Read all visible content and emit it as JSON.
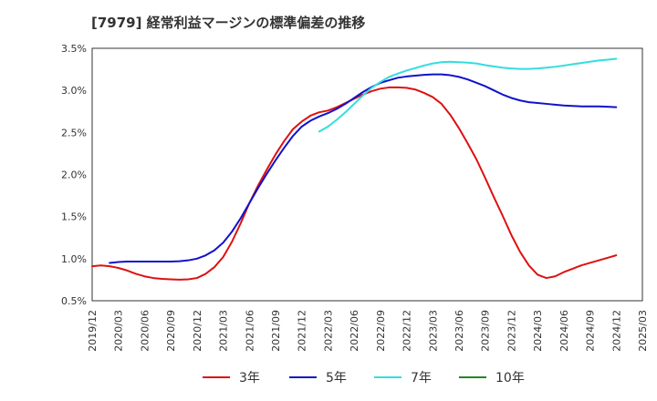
{
  "chart_data": {
    "type": "line",
    "title": "[7979]  経常利益マージンの標準偏差の推移",
    "xlabel": "",
    "ylabel": "",
    "ylim": [
      0.5,
      3.5
    ],
    "y_ticks": [
      "0.5%",
      "1.0%",
      "1.5%",
      "2.0%",
      "2.5%",
      "3.0%",
      "3.5%"
    ],
    "y_tick_values": [
      0.5,
      1.0,
      1.5,
      2.0,
      2.5,
      3.0,
      3.5
    ],
    "x_ticks": [
      "2019/12",
      "2020/03",
      "2020/06",
      "2020/09",
      "2020/12",
      "2021/03",
      "2021/06",
      "2021/09",
      "2021/12",
      "2022/03",
      "2022/06",
      "2022/09",
      "2022/12",
      "2023/03",
      "2023/06",
      "2023/09",
      "2023/12",
      "2024/03",
      "2024/06",
      "2024/09",
      "2024/12",
      "2025/03"
    ],
    "grid": true,
    "legend_position": "bottom",
    "series": [
      {
        "name": "3年",
        "color": "#dd1111",
        "points": [
          [
            "2019/12",
            0.91
          ],
          [
            "2020/01",
            0.92
          ],
          [
            "2020/02",
            0.91
          ],
          [
            "2020/03",
            0.89
          ],
          [
            "2020/04",
            0.86
          ],
          [
            "2020/05",
            0.82
          ],
          [
            "2020/06",
            0.79
          ],
          [
            "2020/07",
            0.77
          ],
          [
            "2020/08",
            0.76
          ],
          [
            "2020/09",
            0.755
          ],
          [
            "2020/10",
            0.75
          ],
          [
            "2020/11",
            0.755
          ],
          [
            "2020/12",
            0.77
          ],
          [
            "2021/01",
            0.82
          ],
          [
            "2021/02",
            0.9
          ],
          [
            "2021/03",
            1.02
          ],
          [
            "2021/04",
            1.2
          ],
          [
            "2021/05",
            1.42
          ],
          [
            "2021/06",
            1.66
          ],
          [
            "2021/07",
            1.87
          ],
          [
            "2021/08",
            2.06
          ],
          [
            "2021/09",
            2.24
          ],
          [
            "2021/10",
            2.4
          ],
          [
            "2021/11",
            2.54
          ],
          [
            "2021/12",
            2.63
          ],
          [
            "2022/01",
            2.7
          ],
          [
            "2022/02",
            2.74
          ],
          [
            "2022/03",
            2.76
          ],
          [
            "2022/04",
            2.8
          ],
          [
            "2022/05",
            2.85
          ],
          [
            "2022/06",
            2.9
          ],
          [
            "2022/07",
            2.95
          ],
          [
            "2022/08",
            2.99
          ],
          [
            "2022/09",
            3.02
          ],
          [
            "2022/10",
            3.035
          ],
          [
            "2022/11",
            3.035
          ],
          [
            "2022/12",
            3.03
          ],
          [
            "2023/01",
            3.01
          ],
          [
            "2023/02",
            2.97
          ],
          [
            "2023/03",
            2.92
          ],
          [
            "2023/04",
            2.84
          ],
          [
            "2023/05",
            2.71
          ],
          [
            "2023/06",
            2.55
          ],
          [
            "2023/07",
            2.37
          ],
          [
            "2023/08",
            2.18
          ],
          [
            "2023/09",
            1.96
          ],
          [
            "2023/10",
            1.73
          ],
          [
            "2023/11",
            1.51
          ],
          [
            "2023/12",
            1.28
          ],
          [
            "2024/01",
            1.08
          ],
          [
            "2024/02",
            0.92
          ],
          [
            "2024/03",
            0.81
          ],
          [
            "2024/04",
            0.77
          ],
          [
            "2024/05",
            0.79
          ],
          [
            "2024/06",
            0.84
          ],
          [
            "2024/07",
            0.88
          ],
          [
            "2024/08",
            0.92
          ],
          [
            "2024/09",
            0.95
          ],
          [
            "2024/10",
            0.98
          ],
          [
            "2024/11",
            1.01
          ],
          [
            "2024/12",
            1.04
          ]
        ]
      },
      {
        "name": "5年",
        "color": "#1111cc",
        "points": [
          [
            "2020/02",
            0.95
          ],
          [
            "2020/03",
            0.96
          ],
          [
            "2020/04",
            0.965
          ],
          [
            "2020/05",
            0.965
          ],
          [
            "2020/06",
            0.965
          ],
          [
            "2020/07",
            0.965
          ],
          [
            "2020/08",
            0.965
          ],
          [
            "2020/09",
            0.965
          ],
          [
            "2020/10",
            0.97
          ],
          [
            "2020/11",
            0.98
          ],
          [
            "2020/12",
            1.0
          ],
          [
            "2021/01",
            1.04
          ],
          [
            "2021/02",
            1.1
          ],
          [
            "2021/03",
            1.19
          ],
          [
            "2021/04",
            1.32
          ],
          [
            "2021/05",
            1.48
          ],
          [
            "2021/06",
            1.66
          ],
          [
            "2021/07",
            1.84
          ],
          [
            "2021/08",
            2.01
          ],
          [
            "2021/09",
            2.17
          ],
          [
            "2021/10",
            2.32
          ],
          [
            "2021/11",
            2.46
          ],
          [
            "2021/12",
            2.57
          ],
          [
            "2022/01",
            2.64
          ],
          [
            "2022/02",
            2.69
          ],
          [
            "2022/03",
            2.73
          ],
          [
            "2022/04",
            2.78
          ],
          [
            "2022/05",
            2.84
          ],
          [
            "2022/06",
            2.91
          ],
          [
            "2022/07",
            2.98
          ],
          [
            "2022/08",
            3.04
          ],
          [
            "2022/09",
            3.09
          ],
          [
            "2022/10",
            3.12
          ],
          [
            "2022/11",
            3.15
          ],
          [
            "2022/12",
            3.165
          ],
          [
            "2023/01",
            3.175
          ],
          [
            "2023/02",
            3.185
          ],
          [
            "2023/03",
            3.19
          ],
          [
            "2023/04",
            3.19
          ],
          [
            "2023/05",
            3.18
          ],
          [
            "2023/06",
            3.16
          ],
          [
            "2023/07",
            3.13
          ],
          [
            "2023/08",
            3.09
          ],
          [
            "2023/09",
            3.05
          ],
          [
            "2023/10",
            3.0
          ],
          [
            "2023/11",
            2.95
          ],
          [
            "2023/12",
            2.91
          ],
          [
            "2024/01",
            2.88
          ],
          [
            "2024/02",
            2.86
          ],
          [
            "2024/03",
            2.85
          ],
          [
            "2024/04",
            2.84
          ],
          [
            "2024/05",
            2.83
          ],
          [
            "2024/06",
            2.82
          ],
          [
            "2024/07",
            2.815
          ],
          [
            "2024/08",
            2.81
          ],
          [
            "2024/09",
            2.81
          ],
          [
            "2024/10",
            2.81
          ],
          [
            "2024/11",
            2.805
          ],
          [
            "2024/12",
            2.8
          ]
        ]
      },
      {
        "name": "7年",
        "color": "#33dddd",
        "points": [
          [
            "2022/02",
            2.51
          ],
          [
            "2022/03",
            2.57
          ],
          [
            "2022/04",
            2.65
          ],
          [
            "2022/05",
            2.74
          ],
          [
            "2022/06",
            2.84
          ],
          [
            "2022/07",
            2.94
          ],
          [
            "2022/08",
            3.03
          ],
          [
            "2022/09",
            3.1
          ],
          [
            "2022/10",
            3.16
          ],
          [
            "2022/11",
            3.2
          ],
          [
            "2022/12",
            3.235
          ],
          [
            "2023/01",
            3.265
          ],
          [
            "2023/02",
            3.295
          ],
          [
            "2023/03",
            3.32
          ],
          [
            "2023/04",
            3.335
          ],
          [
            "2023/05",
            3.34
          ],
          [
            "2023/06",
            3.335
          ],
          [
            "2023/07",
            3.33
          ],
          [
            "2023/08",
            3.32
          ],
          [
            "2023/09",
            3.3
          ],
          [
            "2023/10",
            3.285
          ],
          [
            "2023/11",
            3.27
          ],
          [
            "2023/12",
            3.26
          ],
          [
            "2024/01",
            3.255
          ],
          [
            "2024/02",
            3.255
          ],
          [
            "2024/03",
            3.26
          ],
          [
            "2024/04",
            3.27
          ],
          [
            "2024/05",
            3.28
          ],
          [
            "2024/06",
            3.295
          ],
          [
            "2024/07",
            3.31
          ],
          [
            "2024/08",
            3.325
          ],
          [
            "2024/09",
            3.34
          ],
          [
            "2024/10",
            3.355
          ],
          [
            "2024/11",
            3.365
          ],
          [
            "2024/12",
            3.375
          ]
        ]
      },
      {
        "name": "10年",
        "color": "#228822",
        "points": []
      }
    ]
  }
}
